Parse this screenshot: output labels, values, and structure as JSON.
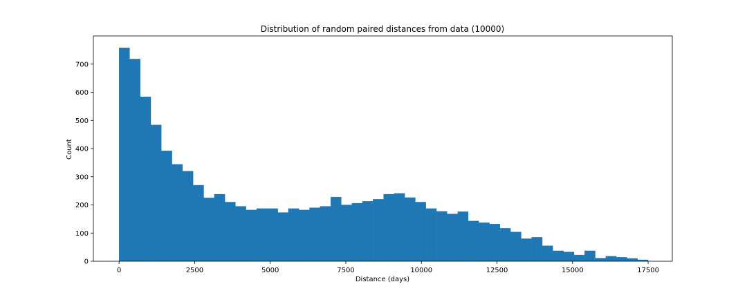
{
  "chart_data": {
    "type": "bar",
    "title": "Distribution of random paired distances from data (10000)",
    "xlabel": "Distance (days)",
    "ylabel": "Count",
    "xlim": [
      -850,
      18300
    ],
    "ylim": [
      0,
      800
    ],
    "xticks": [
      0,
      2500,
      5000,
      7500,
      10000,
      12500,
      15000,
      17500
    ],
    "yticks": [
      0,
      100,
      200,
      300,
      400,
      500,
      600,
      700
    ],
    "grid": false,
    "bar_color": "#1f77b4",
    "bins": {
      "start": 0,
      "width": 350,
      "counts": [
        758,
        718,
        584,
        484,
        392,
        344,
        320,
        270,
        225,
        238,
        210,
        195,
        182,
        187,
        187,
        173,
        187,
        182,
        190,
        195,
        228,
        200,
        206,
        213,
        220,
        238,
        241,
        226,
        210,
        187,
        177,
        168,
        176,
        143,
        137,
        132,
        117,
        104,
        80,
        85,
        55,
        37,
        33,
        22,
        37,
        11,
        18,
        14,
        10,
        5
      ]
    }
  }
}
